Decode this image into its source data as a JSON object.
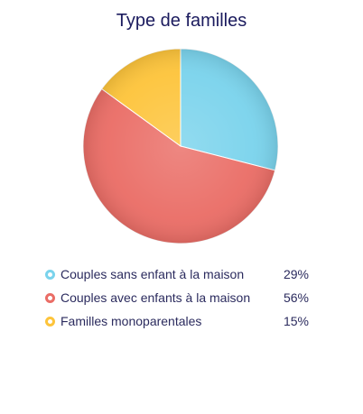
{
  "chart_data": {
    "type": "pie",
    "title": "Type de familles",
    "categories": [
      "Couples sans enfant à la maison",
      "Couples avec enfants à la maison",
      "Familles monoparentales"
    ],
    "values": [
      29,
      56,
      15
    ],
    "value_labels": [
      "29%",
      "56%",
      "15%"
    ],
    "colors": [
      "#7ad3ec",
      "#ea6d66",
      "#fdc43b"
    ],
    "legend_position": "bottom"
  }
}
